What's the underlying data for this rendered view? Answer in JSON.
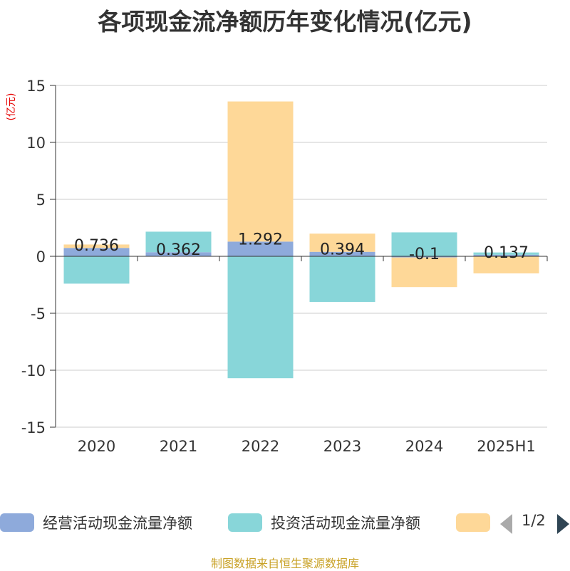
{
  "title": "各项现金流净额历年变化情况(亿元)",
  "unit_label": "(亿元)",
  "footer": "制图数据来自恒生聚源数据库",
  "legend": {
    "items": [
      {
        "label": "经营活动现金流量净额",
        "color": "#8eaadb"
      },
      {
        "label": "投资活动现金流量净额",
        "color": "#88d6d9"
      },
      {
        "label": "",
        "color": "#fed898"
      }
    ],
    "page": "1/2"
  },
  "chart_data": {
    "type": "bar",
    "stacked": true,
    "categories": [
      "2020",
      "2021",
      "2022",
      "2023",
      "2024",
      "2025H1"
    ],
    "ylim": [
      -15,
      15
    ],
    "yticks": [
      15,
      10,
      5,
      0,
      -5,
      -10,
      -15
    ],
    "grid": true,
    "legend_position": "bottom",
    "series": [
      {
        "name": "经营活动现金流量净额",
        "color": "#8eaadb",
        "values": [
          0.736,
          0.362,
          1.292,
          0.394,
          -0.1,
          0.137
        ],
        "labels": [
          "0.736",
          "0.362",
          "1.292",
          "0.394",
          "-0.1",
          "0.137"
        ]
      },
      {
        "name": "投资活动现金流量净额",
        "color": "#88d6d9",
        "values": [
          -2.4,
          1.8,
          -10.7,
          -4.0,
          2.1,
          0.2
        ]
      },
      {
        "color": "#fed898",
        "values": [
          0.3,
          0.0,
          12.3,
          1.6,
          -2.6,
          -1.5
        ]
      }
    ]
  }
}
